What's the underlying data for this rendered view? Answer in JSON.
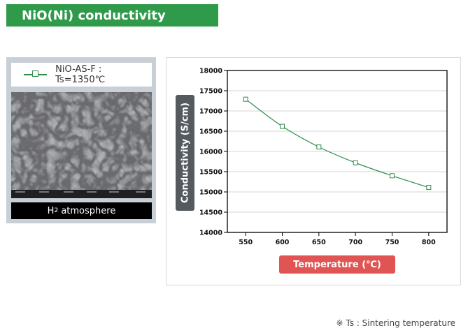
{
  "header": {
    "title": "NiO(Ni) conductivity"
  },
  "sample": {
    "legend_label": "NiO-AS-F : Ts=1350℃",
    "atmosphere_main": "H",
    "atmosphere_sub": "2",
    "atmosphere_rest": " atmosphere"
  },
  "chart_data": {
    "type": "line",
    "xlabel": "Temperature (℃)",
    "ylabel": "Conductivity (S/cm)",
    "x": [
      550,
      600,
      650,
      700,
      750,
      800
    ],
    "series": [
      {
        "name": "NiO-AS-F : Ts=1350℃",
        "values": [
          17290,
          16620,
          16110,
          15720,
          15400,
          15110
        ],
        "color": "#2e8b4a",
        "marker": "square-open"
      }
    ],
    "xlim": [
      525,
      825
    ],
    "ylim": [
      14000,
      18000
    ],
    "xticks": [
      550,
      600,
      650,
      700,
      750,
      800
    ],
    "yticks": [
      14000,
      14500,
      15000,
      15500,
      16000,
      16500,
      17000,
      17500,
      18000
    ],
    "grid": "horizontal",
    "legend": "none"
  },
  "footnote": "※ Ts : Sintering temperature"
}
